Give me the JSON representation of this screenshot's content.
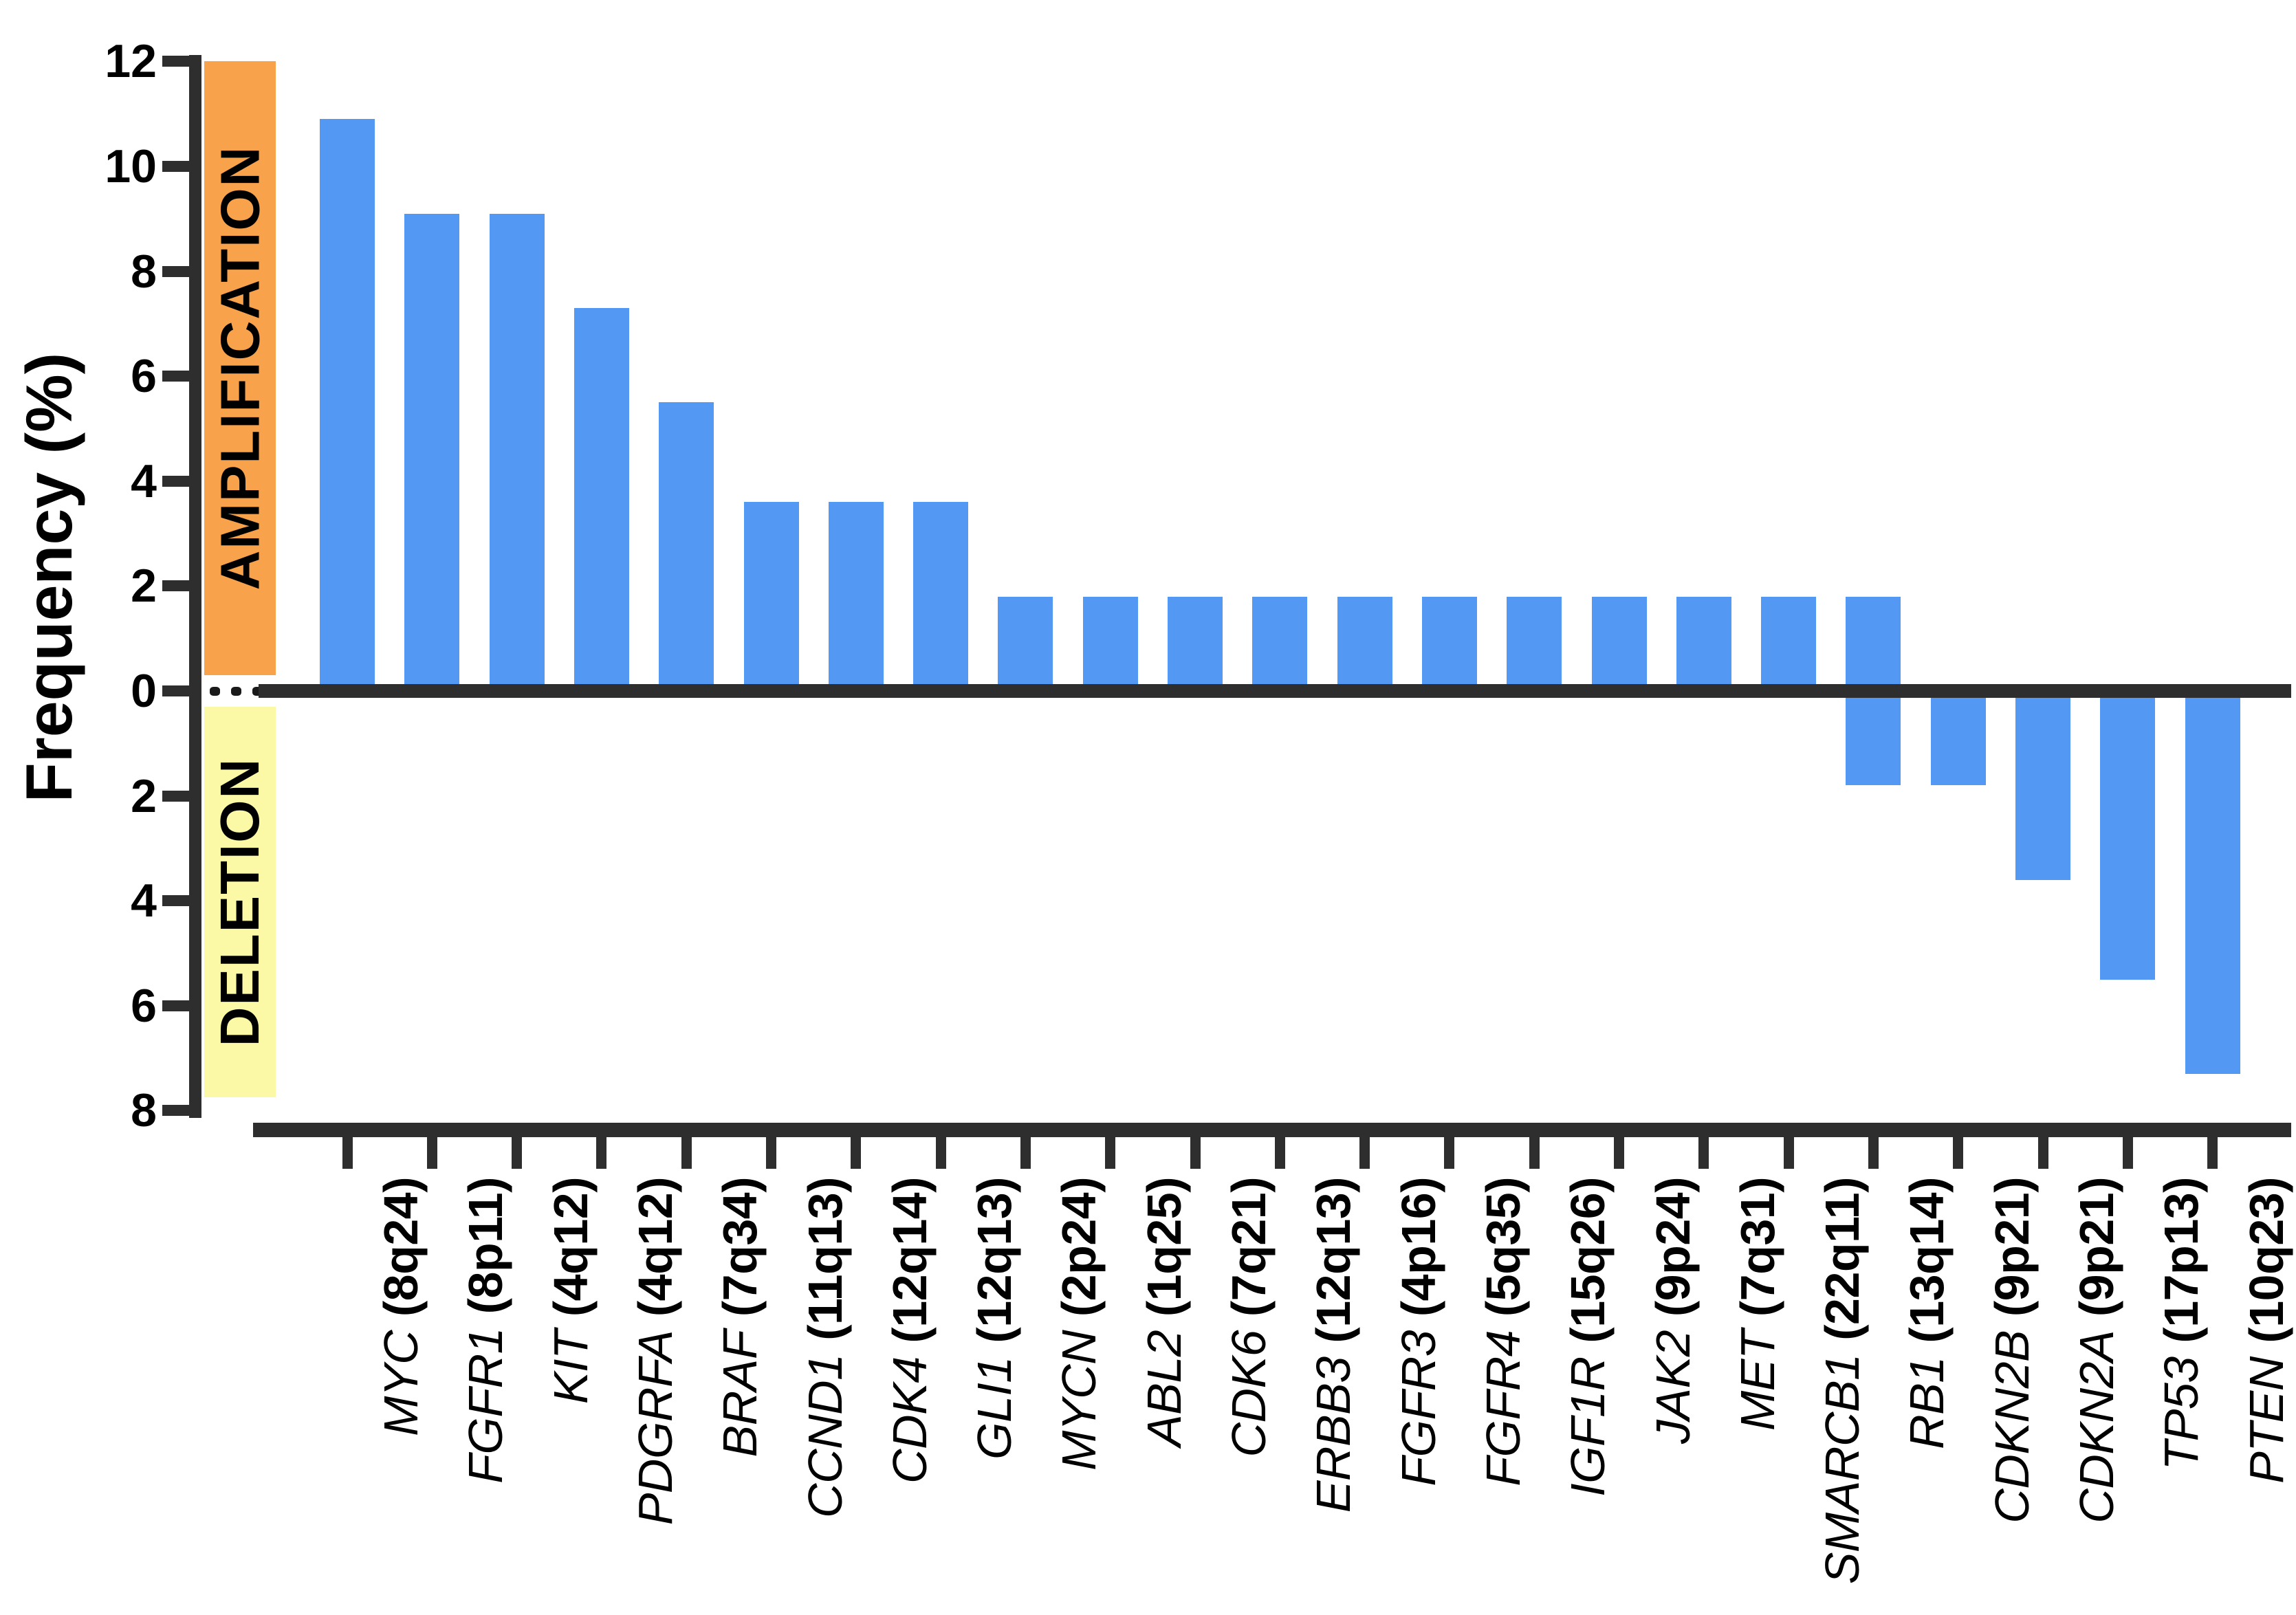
{
  "y_axis": {
    "title": "Frequency (%)",
    "amp_ticks": [
      "12",
      "10",
      "8",
      "6",
      "4",
      "2",
      "0"
    ],
    "del_ticks": [
      "2",
      "4",
      "6",
      "8"
    ]
  },
  "bands": {
    "amplification": {
      "label": "AMPLIFICATION",
      "color": "#F8A24C"
    },
    "deletion": {
      "label": "DELETION",
      "color": "#FBF8A6"
    }
  },
  "colors": {
    "bar_blue": "#5398F2",
    "axis_dark": "#2e2e2e",
    "amplification_band": "#F8A24C",
    "deletion_band": "#FBF8A6"
  },
  "chart_data": {
    "type": "bar",
    "title": "",
    "ylabel": "Frequency (%)",
    "units": "percent",
    "amp_axis_range": [
      0,
      12
    ],
    "del_axis_range": [
      0,
      8
    ],
    "grid": false,
    "legend": "none",
    "categories": [
      "MYC (8q24)",
      "FGFR1 (8p11)",
      "KIT (4q12)",
      "PDGRFA (4q12)",
      "BRAF (7q34)",
      "CCND1 (11q13)",
      "CDK4 (12q14)",
      "GLI1 (12q13)",
      "MYCN (2p24)",
      "ABL2 (1q25)",
      "CDK6 (7q21)",
      "ERBB3 (12q13)",
      "FGFR3 (4p16)",
      "FGFR4 (5q35)",
      "IGF1R (15q26)",
      "JAK2 (9p24)",
      "MET (7q31)",
      "SMARCB1 (22q11)",
      "RB1 (13q14)",
      "CDKN2B (9p21)",
      "CDKN2A (9p21)",
      "TP53 (17p13)",
      "PTEN (10q23)"
    ],
    "genes": [
      {
        "gene": "MYC",
        "locus": "(8q24)",
        "amplification": 10.9,
        "deletion": 0
      },
      {
        "gene": "FGFR1",
        "locus": "(8p11)",
        "amplification": 9.1,
        "deletion": 0
      },
      {
        "gene": "KIT",
        "locus": "(4q12)",
        "amplification": 9.1,
        "deletion": 0
      },
      {
        "gene": "PDGRFA",
        "locus": "(4q12)",
        "amplification": 7.3,
        "deletion": 0
      },
      {
        "gene": "BRAF",
        "locus": "(7q34)",
        "amplification": 5.5,
        "deletion": 0
      },
      {
        "gene": "CCND1",
        "locus": "(11q13)",
        "amplification": 3.6,
        "deletion": 0
      },
      {
        "gene": "CDK4",
        "locus": "(12q14)",
        "amplification": 3.6,
        "deletion": 0
      },
      {
        "gene": "GLI1",
        "locus": "(12q13)",
        "amplification": 3.6,
        "deletion": 0
      },
      {
        "gene": "MYCN",
        "locus": "(2p24)",
        "amplification": 1.8,
        "deletion": 0
      },
      {
        "gene": "ABL2",
        "locus": "(1q25)",
        "amplification": 1.8,
        "deletion": 0
      },
      {
        "gene": "CDK6",
        "locus": "(7q21)",
        "amplification": 1.8,
        "deletion": 0
      },
      {
        "gene": "ERBB3",
        "locus": "(12q13)",
        "amplification": 1.8,
        "deletion": 0
      },
      {
        "gene": "FGFR3",
        "locus": "(4p16)",
        "amplification": 1.8,
        "deletion": 0
      },
      {
        "gene": "FGFR4",
        "locus": "(5q35)",
        "amplification": 1.8,
        "deletion": 0
      },
      {
        "gene": "IGF1R",
        "locus": "(15q26)",
        "amplification": 1.8,
        "deletion": 0
      },
      {
        "gene": "JAK2",
        "locus": "(9p24)",
        "amplification": 1.8,
        "deletion": 0
      },
      {
        "gene": "MET",
        "locus": "(7q31)",
        "amplification": 1.8,
        "deletion": 0
      },
      {
        "gene": "SMARCB1",
        "locus": "(22q11)",
        "amplification": 1.8,
        "deletion": 0
      },
      {
        "gene": "RB1",
        "locus": "(13q14)",
        "amplification": 1.8,
        "deletion": 1.8
      },
      {
        "gene": "CDKN2B",
        "locus": "(9p21)",
        "amplification": 0,
        "deletion": 1.8
      },
      {
        "gene": "CDKN2A",
        "locus": "(9p21)",
        "amplification": 0,
        "deletion": 3.6
      },
      {
        "gene": "TP53",
        "locus": "(17p13)",
        "amplification": 0,
        "deletion": 5.5
      },
      {
        "gene": "PTEN",
        "locus": "(10q23)",
        "amplification": 0,
        "deletion": 7.3
      }
    ]
  }
}
